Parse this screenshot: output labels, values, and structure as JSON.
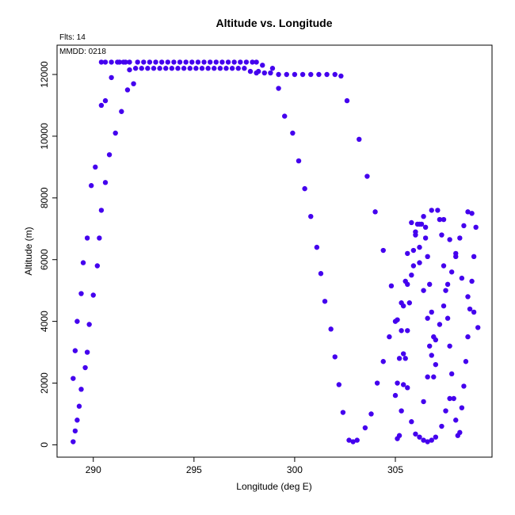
{
  "chart_data": {
    "type": "scatter",
    "title": "Altitude vs. Longitude",
    "xlabel": "Longitude (deg E)",
    "ylabel": "Altitude (m)",
    "xlim": [
      288.2,
      309.8
    ],
    "ylim": [
      -400,
      12950
    ],
    "xticks": [
      290,
      295,
      300,
      305
    ],
    "yticks": [
      0,
      2000,
      4000,
      6000,
      8000,
      10000,
      12000
    ],
    "grid": false,
    "point_color": "#4400ee",
    "annotations": {
      "flights": "Flts: 14",
      "date": "MMDD: 0218"
    },
    "series": [
      {
        "x": [
          289.0,
          289.1,
          289.2,
          289.3,
          289.4,
          289.6,
          289.7,
          289.8,
          290.0,
          290.2,
          290.3,
          290.4,
          290.6,
          290.8,
          291.1,
          291.4,
          291.7,
          292.0,
          289.0,
          289.1,
          289.2,
          289.4,
          289.5,
          289.7,
          289.9,
          290.1,
          290.4,
          290.6,
          290.9,
          291.3,
          291.6,
          291.8,
          292.2,
          292.5,
          292.8,
          293.1,
          293.4,
          293.7,
          294.0,
          294.3,
          294.6,
          294.9,
          295.2,
          295.5,
          295.8,
          296.1,
          296.4,
          296.7,
          297.0,
          297.3,
          297.6,
          297.9,
          298.1,
          290.4,
          290.6,
          290.9,
          291.2,
          291.5,
          291.8,
          292.1,
          292.4,
          292.7,
          293.0,
          293.3,
          293.6,
          293.9,
          294.2,
          294.5,
          294.8,
          295.1,
          295.4,
          295.7,
          296.0,
          296.3,
          296.6,
          296.9,
          297.2,
          297.5,
          297.8,
          298.1,
          298.4,
          298.9,
          298.2,
          298.5,
          298.8,
          299.2,
          299.6,
          300.0,
          300.4,
          300.8,
          301.2,
          301.6,
          302.0,
          302.3,
          299.2,
          299.5,
          299.9,
          300.2,
          300.5,
          300.8,
          301.1,
          301.3,
          301.5,
          301.8,
          302.0,
          302.2,
          302.4,
          302.7,
          302.9,
          303.1,
          302.6,
          303.2,
          303.6,
          304.0,
          304.4,
          304.8,
          305.1,
          305.4,
          305.6,
          305.8,
          306.0,
          306.2,
          306.4,
          306.6,
          306.8,
          307.0,
          307.3,
          307.5,
          307.7,
          303.5,
          303.8,
          304.1,
          304.4,
          304.7,
          305.0,
          305.3,
          305.6,
          305.9,
          306.2,
          306.5,
          306.8,
          307.1,
          307.4,
          307.7,
          308.0,
          308.3,
          308.6,
          308.9,
          309.1,
          305.1,
          305.2,
          305.3,
          305.4,
          305.5,
          305.6,
          305.7,
          305.8,
          305.9,
          306.0,
          306.1,
          306.2,
          306.3,
          306.4,
          306.5,
          306.6,
          306.7,
          306.8,
          306.9,
          307.0,
          305.0,
          305.1,
          305.2,
          305.3,
          305.4,
          305.5,
          305.6,
          305.8,
          306.0,
          306.2,
          306.4,
          306.6,
          306.7,
          306.9,
          307.2,
          307.3,
          307.4,
          307.5,
          307.6,
          307.7,
          307.8,
          307.9,
          308.0,
          308.1,
          308.2,
          308.3,
          308.4,
          308.5,
          308.6,
          308.7,
          308.8,
          308.9,
          306.4,
          306.6,
          306.8,
          307.0,
          307.2,
          307.4,
          307.6,
          307.8,
          308.0,
          308.2,
          308.4,
          308.6,
          308.8,
          309.0
        ],
        "y": [
          100,
          450,
          800,
          1250,
          1800,
          2500,
          3000,
          3900,
          4850,
          5800,
          6700,
          7600,
          8500,
          9400,
          10100,
          10800,
          11500,
          11700,
          2150,
          3050,
          4000,
          4900,
          5900,
          6700,
          8400,
          9000,
          11000,
          11150,
          11900,
          12400,
          12400,
          12400,
          12400,
          12400,
          12400,
          12400,
          12400,
          12400,
          12400,
          12400,
          12400,
          12400,
          12400,
          12400,
          12400,
          12400,
          12400,
          12400,
          12400,
          12400,
          12400,
          12400,
          12400,
          12400,
          12400,
          12400,
          12400,
          12400,
          12150,
          12200,
          12200,
          12200,
          12200,
          12200,
          12200,
          12200,
          12200,
          12200,
          12200,
          12200,
          12200,
          12200,
          12200,
          12200,
          12200,
          12200,
          12200,
          12200,
          12100,
          12050,
          12300,
          12200,
          12100,
          12050,
          12050,
          12000,
          12000,
          12000,
          12000,
          12000,
          12000,
          12000,
          12000,
          11950,
          11550,
          10650,
          10100,
          9200,
          8300,
          7400,
          6400,
          5550,
          4650,
          3750,
          2850,
          1950,
          1050,
          150,
          100,
          150,
          11150,
          9900,
          8700,
          7550,
          6300,
          5150,
          4050,
          2950,
          1850,
          750,
          350,
          250,
          150,
          100,
          150,
          250,
          600,
          1100,
          1500,
          550,
          1000,
          2000,
          2700,
          3500,
          4000,
          4600,
          5200,
          5800,
          6400,
          7050,
          7600,
          7600,
          7300,
          6650,
          6100,
          5400,
          4800,
          4300,
          3800,
          200,
          300,
          1100,
          1950,
          2800,
          3700,
          4600,
          5500,
          6300,
          6900,
          7150,
          7150,
          7150,
          7400,
          6700,
          6100,
          5200,
          4300,
          3500,
          2600,
          1600,
          2000,
          2800,
          3700,
          4500,
          5300,
          6200,
          7200,
          6800,
          5900,
          5000,
          4100,
          3200,
          2200,
          7300,
          6800,
          5800,
          5000,
          4100,
          3200,
          2300,
          1500,
          800,
          300,
          400,
          1200,
          1900,
          2700,
          3500,
          4400,
          5300,
          6100,
          1400,
          2200,
          2900,
          3400,
          3900,
          4500,
          5200,
          5600,
          6200,
          6700,
          7100,
          7550,
          7500,
          7050
        ]
      }
    ]
  }
}
